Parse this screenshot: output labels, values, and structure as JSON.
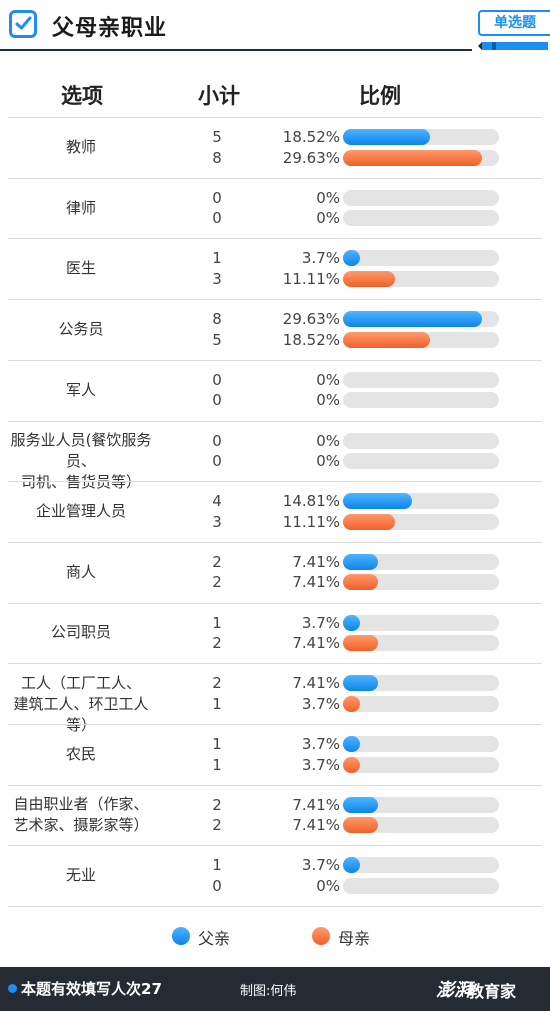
{
  "header": {
    "title": "父母亲职业",
    "tag": "单选题"
  },
  "columns": {
    "option": "选项",
    "count": "小计",
    "ratio": "比例"
  },
  "colors": {
    "father": "#1d8ff0",
    "mother": "#f0602a",
    "track": "#e4e4e4",
    "footer": "#252b33"
  },
  "chart_data": {
    "type": "bar",
    "orientation": "horizontal",
    "xlim": [
      0,
      30
    ],
    "categories": [
      "教师",
      "律师",
      "医生",
      "公务员",
      "军人",
      "服务业人员(餐饮服务员、司机、售货员等)",
      "企业管理人员",
      "商人",
      "公司职员",
      "工人(工厂工人、建筑工人、环卫工人等)",
      "农民",
      "自由职业者(作家、艺术家、摄影家等)",
      "无业"
    ],
    "category_lines": [
      [
        "教师"
      ],
      [
        "律师"
      ],
      [
        "医生"
      ],
      [
        "公务员"
      ],
      [
        "军人"
      ],
      [
        "服务业人员(餐饮服务员、",
        "司机、售货员等）"
      ],
      [
        "企业管理人员"
      ],
      [
        "商人"
      ],
      [
        "公司职员"
      ],
      [
        "工人（工厂工人、",
        "建筑工人、环卫工人等）"
      ],
      [
        "农民"
      ],
      [
        "自由职业者（作家、",
        "艺术家、摄影家等）"
      ],
      [
        "无业"
      ]
    ],
    "series": [
      {
        "name": "父亲",
        "counts": [
          "5",
          "0",
          "1",
          "8",
          "0",
          "0",
          "4",
          "2",
          "1",
          "2",
          "1",
          "2",
          "1"
        ],
        "values": [
          18.52,
          0,
          3.7,
          29.63,
          0,
          0,
          14.81,
          7.41,
          3.7,
          7.41,
          3.7,
          7.41,
          3.7
        ],
        "labels": [
          "18.52%",
          "0%",
          "3.7%",
          "29.63%",
          "0%",
          "0%",
          "14.81%",
          "7.41%",
          "3.7%",
          "7.41%",
          "3.7%",
          "7.41%",
          "3.7%"
        ]
      },
      {
        "name": "母亲",
        "counts": [
          "8",
          "0",
          "3",
          "5",
          "0",
          "0",
          "3",
          "2",
          "2",
          "1",
          "1",
          "2",
          "0"
        ],
        "values": [
          29.63,
          0,
          11.11,
          18.52,
          0,
          0,
          11.11,
          7.41,
          7.41,
          3.7,
          3.7,
          7.41,
          0
        ],
        "labels": [
          "29.63%",
          "0%",
          "11.11%",
          "18.52%",
          "0%",
          "0%",
          "11.11%",
          "7.41%",
          "7.41%",
          "3.7%",
          "3.7%",
          "7.41%",
          "0%"
        ]
      }
    ]
  },
  "legend": {
    "father": "父亲",
    "mother": "母亲"
  },
  "footer": {
    "respondents": "本题有效填写人次27",
    "credit": "制图:何伟",
    "logo": "澎湃",
    "brand": "教育家"
  }
}
